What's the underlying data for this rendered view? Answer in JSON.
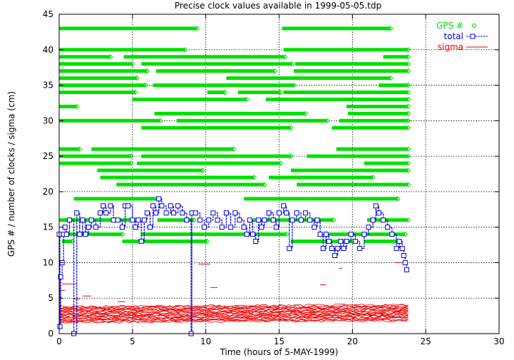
{
  "chart_data": {
    "type": "scatter",
    "title": "Precise clock values available in 1999-05-05.tdp",
    "xlabel": "Time (hours of 5-MAY-1999)",
    "ylabel": "GPS # / number of clocks / sigma (cm)",
    "xlim": [
      0,
      30
    ],
    "ylim": [
      0,
      45
    ],
    "x_ticks": [
      "0",
      "5",
      "10",
      "15",
      "20",
      "25",
      "30"
    ],
    "y_ticks": [
      "0",
      "5",
      "10",
      "15",
      "20",
      "25",
      "30",
      "35",
      "40",
      "45"
    ],
    "grid": true,
    "legend_position": "top-right",
    "colors": {
      "gps": "#00e000",
      "total": "#0000dd",
      "sigma": "#ee0000"
    },
    "series": [
      {
        "name": "GPS #",
        "marker": "diamond",
        "segments": [
          {
            "prn": 43,
            "ranges": [
              [
                0.0,
                9.4
              ],
              [
                15.2,
                22.6
              ]
            ]
          },
          {
            "prn": 40,
            "ranges": [
              [
                0.0,
                8.6
              ],
              [
                15.3,
                23.8
              ]
            ]
          },
          {
            "prn": 39,
            "ranges": [
              [
                0.0,
                3.5
              ],
              [
                4.4,
                15.4
              ],
              [
                22.1,
                23.8
              ]
            ]
          },
          {
            "prn": 38,
            "ranges": [
              [
                0.0,
                5.0
              ],
              [
                5.6,
                15.9
              ],
              [
                16.1,
                23.8
              ]
            ]
          },
          {
            "prn": 37,
            "ranges": [
              [
                0.0,
                6.0
              ],
              [
                6.6,
                14.7
              ],
              [
                16.0,
                23.8
              ]
            ]
          },
          {
            "prn": 36,
            "ranges": [
              [
                0.0,
                5.3
              ],
              [
                11.4,
                22.6
              ]
            ]
          },
          {
            "prn": 35,
            "ranges": [
              [
                0.0,
                5.9
              ],
              [
                6.4,
                16.0
              ],
              [
                21.8,
                23.8
              ]
            ]
          },
          {
            "prn": 34,
            "ranges": [
              [
                0.0,
                5.2
              ],
              [
                10.1,
                11.3
              ],
              [
                12.2,
                15.1
              ],
              [
                15.3,
                23.8
              ]
            ]
          },
          {
            "prn": 33,
            "ranges": [
              [
                5.0,
                12.8
              ],
              [
                14.1,
                23.8
              ]
            ]
          },
          {
            "prn": 32,
            "ranges": [
              [
                0.0,
                1.2
              ],
              [
                19.6,
                23.8
              ]
            ]
          },
          {
            "prn": 31,
            "ranges": [
              [
                6.5,
                16.8
              ],
              [
                19.7,
                23.8
              ]
            ]
          },
          {
            "prn": 30,
            "ranges": [
              [
                0.0,
                6.9
              ],
              [
                8.0,
                18.3
              ],
              [
                19.1,
                23.8
              ]
            ]
          },
          {
            "prn": 29,
            "ranges": [
              [
                5.6,
                15.8
              ],
              [
                18.6,
                23.8
              ]
            ]
          },
          {
            "prn": 26,
            "ranges": [
              [
                0.0,
                1.4
              ],
              [
                2.2,
                11.9
              ],
              [
                18.9,
                23.8
              ]
            ]
          },
          {
            "prn": 25,
            "ranges": [
              [
                0.0,
                4.9
              ],
              [
                5.6,
                15.8
              ],
              [
                16.9,
                23.8
              ]
            ]
          },
          {
            "prn": 24,
            "ranges": [
              [
                0.0,
                4.9
              ],
              [
                5.3,
                15.1
              ],
              [
                20.8,
                23.8
              ]
            ]
          },
          {
            "prn": 23,
            "ranges": [
              [
                2.6,
                9.8
              ],
              [
                15.8,
                23.8
              ]
            ]
          },
          {
            "prn": 22,
            "ranges": [
              [
                2.8,
                13.3
              ],
              [
                14.3,
                21.4
              ]
            ]
          },
          {
            "prn": 21,
            "ranges": [
              [
                3.9,
                14.0
              ],
              [
                16.2,
                23.8
              ]
            ]
          },
          {
            "prn": 19,
            "ranges": [
              [
                1.0,
                6.8
              ],
              [
                12.6,
                23.1
              ]
            ]
          },
          {
            "prn": 16,
            "ranges": [
              [
                0.0,
                5.2
              ],
              [
                6.7,
                9.2
              ],
              [
                13.2,
                18.7
              ],
              [
                21.0,
                23.8
              ]
            ]
          },
          {
            "prn": 14,
            "ranges": [
              [
                0.0,
                4.3
              ],
              [
                5.6,
                15.5
              ],
              [
                18.4,
                23.6
              ]
            ]
          },
          {
            "prn": 13,
            "ranges": [
              [
                0.2,
                0.9
              ],
              [
                4.3,
                10.1
              ],
              [
                15.8,
                20.0
              ],
              [
                20.8,
                23.2
              ]
            ]
          }
        ]
      },
      {
        "name": "total",
        "marker": "square",
        "points": [
          [
            0.0,
            14
          ],
          [
            0.05,
            1
          ],
          [
            0.1,
            8
          ],
          [
            0.2,
            10
          ],
          [
            0.3,
            14
          ],
          [
            0.4,
            15
          ],
          [
            0.5,
            14
          ],
          [
            0.7,
            16
          ],
          [
            1.0,
            0
          ],
          [
            1.2,
            17
          ],
          [
            1.4,
            14
          ],
          [
            1.6,
            16
          ],
          [
            1.8,
            14
          ],
          [
            2.0,
            15
          ],
          [
            2.2,
            16
          ],
          [
            2.5,
            15
          ],
          [
            2.8,
            17
          ],
          [
            3.0,
            18
          ],
          [
            3.2,
            17
          ],
          [
            3.5,
            18
          ],
          [
            3.7,
            16
          ],
          [
            4.0,
            16
          ],
          [
            4.3,
            15
          ],
          [
            4.5,
            18
          ],
          [
            4.7,
            18
          ],
          [
            5.0,
            16
          ],
          [
            5.2,
            15
          ],
          [
            5.4,
            16
          ],
          [
            5.6,
            13
          ],
          [
            5.8,
            16
          ],
          [
            6.0,
            17
          ],
          [
            6.2,
            15
          ],
          [
            6.4,
            18
          ],
          [
            6.6,
            17
          ],
          [
            6.8,
            19
          ],
          [
            7.0,
            18
          ],
          [
            7.3,
            17
          ],
          [
            7.6,
            18
          ],
          [
            7.8,
            17
          ],
          [
            8.1,
            18
          ],
          [
            8.4,
            17
          ],
          [
            8.7,
            16
          ],
          [
            9.0,
            0
          ],
          [
            9.05,
            17
          ],
          [
            9.3,
            17
          ],
          [
            9.6,
            16
          ],
          [
            9.9,
            15
          ],
          [
            10.2,
            16
          ],
          [
            10.5,
            17
          ],
          [
            10.8,
            16
          ],
          [
            11.1,
            15
          ],
          [
            11.4,
            17
          ],
          [
            11.7,
            15
          ],
          [
            12.0,
            17
          ],
          [
            12.3,
            16
          ],
          [
            12.6,
            15
          ],
          [
            12.8,
            14
          ],
          [
            13.0,
            16
          ],
          [
            13.2,
            14
          ],
          [
            13.4,
            13
          ],
          [
            13.6,
            16
          ],
          [
            13.8,
            15
          ],
          [
            14.0,
            16
          ],
          [
            14.3,
            17
          ],
          [
            14.6,
            16
          ],
          [
            14.8,
            15
          ],
          [
            15.0,
            17
          ],
          [
            15.3,
            18
          ],
          [
            15.5,
            17
          ],
          [
            15.7,
            12
          ],
          [
            15.9,
            16
          ],
          [
            16.2,
            17
          ],
          [
            16.5,
            16
          ],
          [
            16.8,
            17
          ],
          [
            17.1,
            16
          ],
          [
            17.4,
            15
          ],
          [
            17.6,
            16
          ],
          [
            17.8,
            14
          ],
          [
            18.0,
            12
          ],
          [
            18.2,
            14
          ],
          [
            18.4,
            13
          ],
          [
            18.6,
            12
          ],
          [
            18.8,
            11
          ],
          [
            19.0,
            12
          ],
          [
            19.2,
            13
          ],
          [
            19.4,
            12
          ],
          [
            19.6,
            13
          ],
          [
            19.9,
            14
          ],
          [
            20.2,
            13
          ],
          [
            20.5,
            12
          ],
          [
            20.8,
            14
          ],
          [
            21.1,
            15
          ],
          [
            21.4,
            16
          ],
          [
            21.6,
            18
          ],
          [
            21.8,
            17
          ],
          [
            22.1,
            16
          ],
          [
            22.4,
            15
          ],
          [
            22.7,
            14
          ],
          [
            23.0,
            12
          ],
          [
            23.2,
            13
          ],
          [
            23.4,
            12
          ],
          [
            23.5,
            11
          ],
          [
            23.6,
            10
          ],
          [
            23.7,
            9
          ]
        ]
      },
      {
        "name": "sigma",
        "marker": "line",
        "band": {
          "x": [
            0,
            23.8
          ],
          "y_low": 1.6,
          "y_high": 3.8
        },
        "outliers": [
          [
            [
              0.2,
              7.0
            ],
            [
              1.2,
              7.0
            ]
          ],
          [
            [
              1.0,
              4.9
            ],
            [
              1.4,
              4.9
            ]
          ],
          [
            [
              1.6,
              5.3
            ],
            [
              2.2,
              5.3
            ]
          ],
          [
            [
              0.0,
              6.1
            ],
            [
              0.4,
              6.1
            ]
          ],
          [
            [
              9.5,
              9.8
            ],
            [
              10.3,
              9.8
            ]
          ],
          [
            [
              10.3,
              6.5
            ],
            [
              10.8,
              6.5
            ]
          ],
          [
            [
              17.8,
              6.9
            ],
            [
              18.2,
              6.9
            ]
          ],
          [
            [
              19.1,
              9.2
            ],
            [
              19.3,
              9.2
            ]
          ],
          [
            [
              22.9,
              10.0
            ],
            [
              23.5,
              10.0
            ]
          ],
          [
            [
              4.0,
              4.5
            ],
            [
              4.5,
              4.5
            ]
          ]
        ]
      }
    ]
  }
}
